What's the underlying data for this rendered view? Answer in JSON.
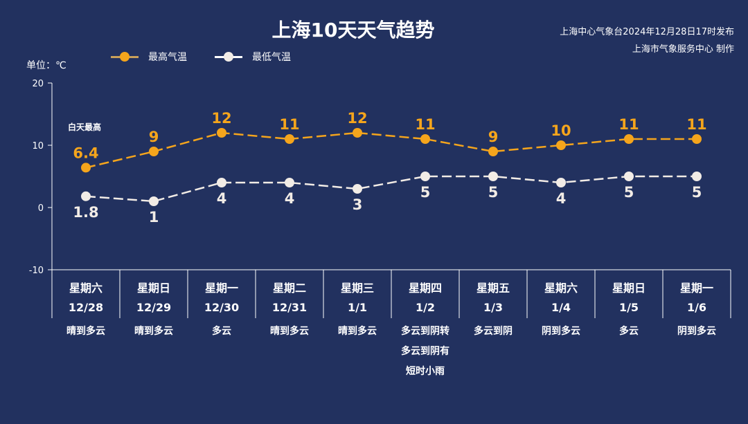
{
  "chart_data": {
    "type": "line",
    "title": "上海10天天气趋势",
    "publisher_line1": "上海中心气象台2024年12月28日17时发布",
    "publisher_line2": "上海市气象服务中心 制作",
    "ylabel": "单位：℃",
    "ylim": [
      -10,
      20
    ],
    "yticks": [
      "20",
      "10",
      "0",
      "-10"
    ],
    "annotation": "白天最高",
    "categories": [
      {
        "weekday": "星期六",
        "date": "12/28",
        "weather": [
          "晴到多云"
        ]
      },
      {
        "weekday": "星期日",
        "date": "12/29",
        "weather": [
          "晴到多云"
        ]
      },
      {
        "weekday": "星期一",
        "date": "12/30",
        "weather": [
          "多云"
        ]
      },
      {
        "weekday": "星期二",
        "date": "12/31",
        "weather": [
          "晴到多云"
        ]
      },
      {
        "weekday": "星期三",
        "date": "1/1",
        "weather": [
          "晴到多云"
        ]
      },
      {
        "weekday": "星期四",
        "date": "1/2",
        "weather": [
          "多云到阴转",
          "多云到阴有",
          "短时小雨"
        ]
      },
      {
        "weekday": "星期五",
        "date": "1/3",
        "weather": [
          "多云到阴"
        ]
      },
      {
        "weekday": "星期六",
        "date": "1/4",
        "weather": [
          "阴到多云"
        ]
      },
      {
        "weekday": "星期日",
        "date": "1/5",
        "weather": [
          "多云"
        ]
      },
      {
        "weekday": "星期一",
        "date": "1/6",
        "weather": [
          "阴到多云"
        ]
      }
    ],
    "series": [
      {
        "name": "最高气温",
        "color": "#f5a51c",
        "labels": [
          "6.4",
          "9",
          "12",
          "11",
          "12",
          "11",
          "9",
          "10",
          "11",
          "11"
        ],
        "values": [
          6.4,
          9,
          12,
          11,
          12,
          11,
          9,
          10,
          11,
          11
        ]
      },
      {
        "name": "最低气温",
        "color": "#f2ece6",
        "labels": [
          "1.8",
          "1",
          "4",
          "4",
          "3",
          "5",
          "5",
          "4",
          "5",
          "5"
        ],
        "values": [
          1.8,
          1,
          4,
          4,
          3,
          5,
          5,
          4,
          5,
          5
        ]
      }
    ]
  }
}
